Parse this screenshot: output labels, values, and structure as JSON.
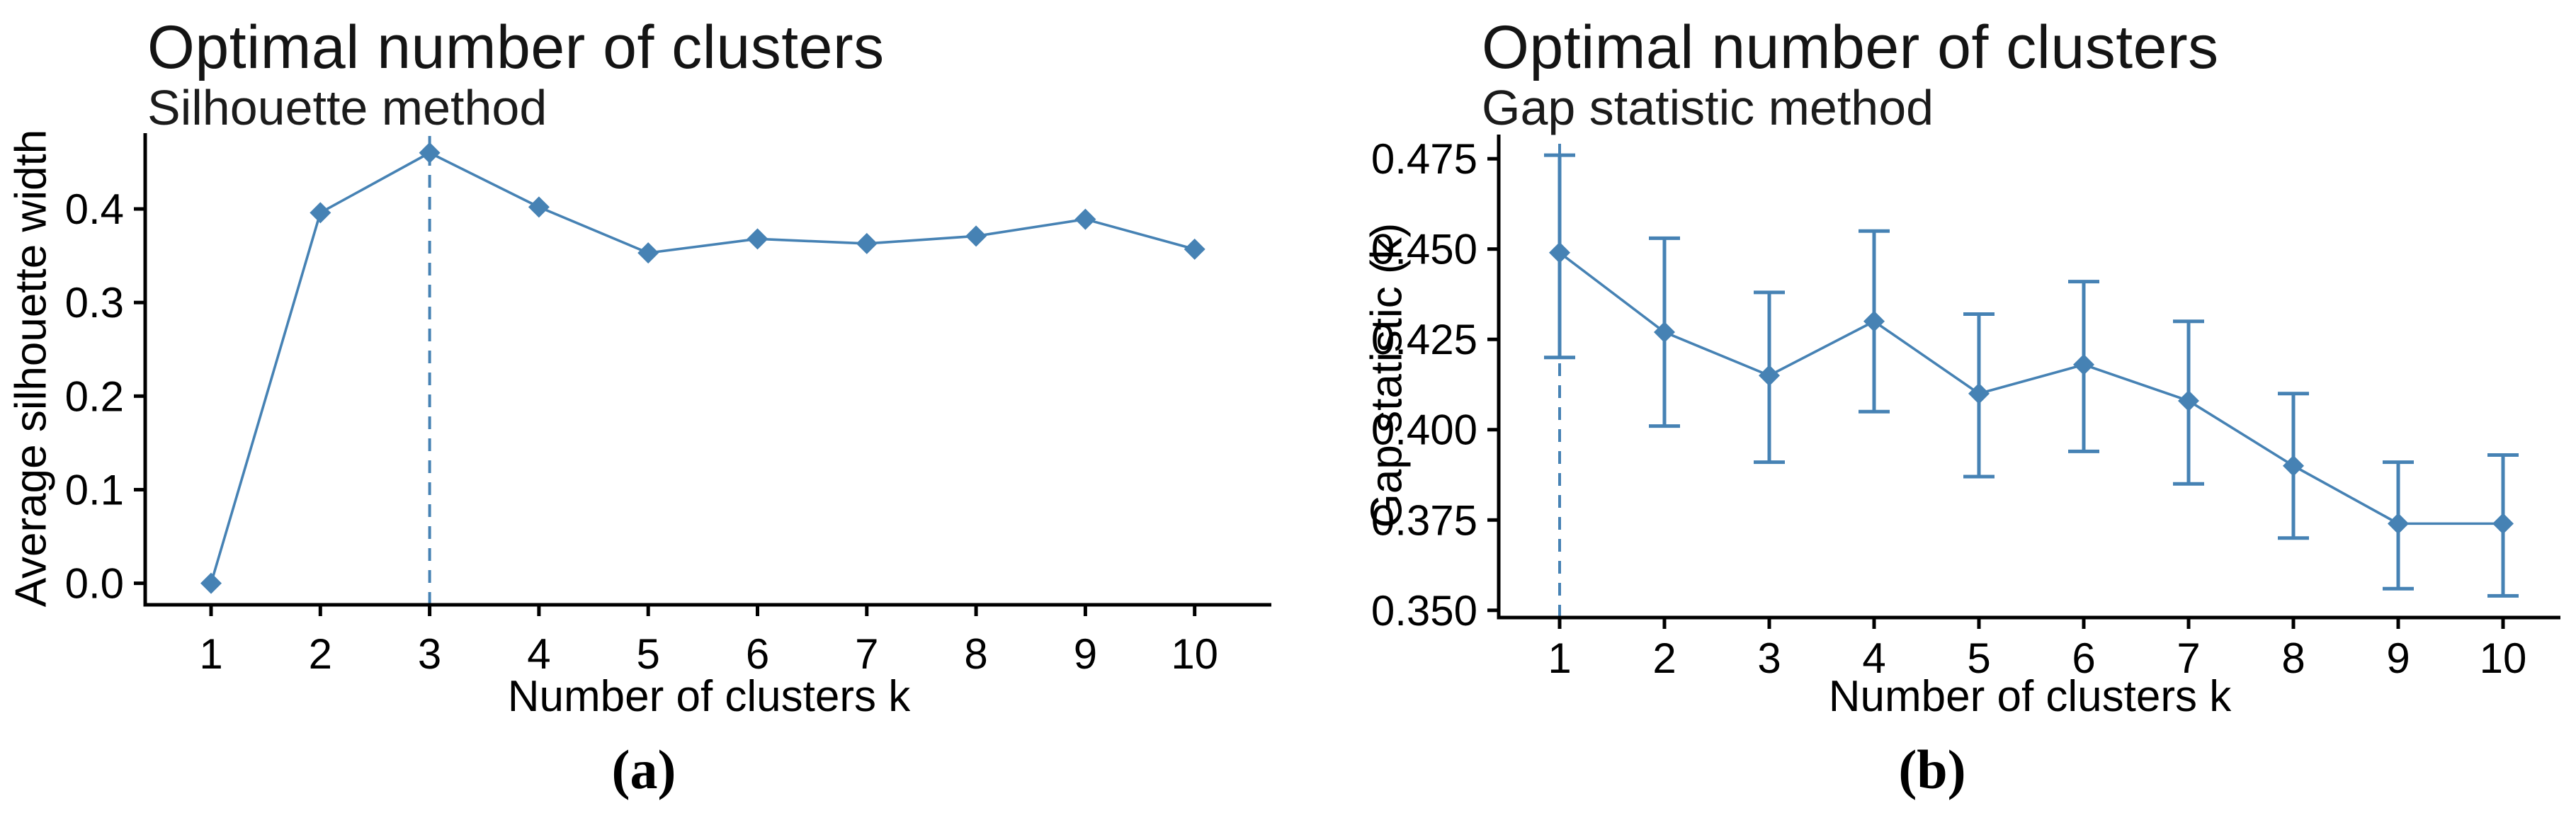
{
  "page": {
    "background": "#ffffff",
    "accent_color": "#4682B4",
    "axis_color": "#000000"
  },
  "captions": {
    "a": "(a)",
    "b": "(b)"
  },
  "chart_data": [
    {
      "id": "silhouette",
      "type": "line",
      "title": "Optimal number of clusters",
      "subtitle": "Silhouette method",
      "xlabel": "Number of clusters k",
      "ylabel": "Average silhouette width",
      "caption": "(a)",
      "color": "#4682B4",
      "marker": "diamond",
      "grid": false,
      "legend": null,
      "x": [
        1,
        2,
        3,
        4,
        5,
        6,
        7,
        8,
        9,
        10
      ],
      "xtick_labels": [
        "1",
        "2",
        "3",
        "4",
        "5",
        "6",
        "7",
        "8",
        "9",
        "10"
      ],
      "values": [
        0.0,
        0.396,
        0.46,
        0.402,
        0.353,
        0.368,
        0.363,
        0.371,
        0.389,
        0.357
      ],
      "yticks": [
        0.0,
        0.1,
        0.2,
        0.3,
        0.4
      ],
      "ytick_labels": [
        "0.0",
        "0.1",
        "0.2",
        "0.3",
        "0.4"
      ],
      "ylim": [
        -0.023,
        0.481
      ],
      "dashed_vline_at_x": 3,
      "annotation": "dashed vertical reference line at k = 3 (optimal)"
    },
    {
      "id": "gap-statistic",
      "type": "line+errorbar",
      "title": "Optimal number of clusters",
      "subtitle": "Gap statistic method",
      "xlabel": "Number of clusters k",
      "ylabel": "Gap statistic (k)",
      "caption": "(b)",
      "color": "#4682B4",
      "marker": "diamond",
      "grid": false,
      "legend": null,
      "x": [
        1,
        2,
        3,
        4,
        5,
        6,
        7,
        8,
        9,
        10
      ],
      "xtick_labels": [
        "1",
        "2",
        "3",
        "4",
        "5",
        "6",
        "7",
        "8",
        "9",
        "10"
      ],
      "values": [
        0.449,
        0.427,
        0.415,
        0.43,
        0.41,
        0.418,
        0.408,
        0.39,
        0.374,
        0.374
      ],
      "error_low": [
        0.42,
        0.401,
        0.391,
        0.405,
        0.387,
        0.394,
        0.385,
        0.37,
        0.356,
        0.354
      ],
      "error_high": [
        0.476,
        0.453,
        0.438,
        0.455,
        0.432,
        0.441,
        0.43,
        0.41,
        0.391,
        0.393
      ],
      "yticks": [
        0.35,
        0.375,
        0.4,
        0.425,
        0.45,
        0.475
      ],
      "ytick_labels": [
        "0.350",
        "0.375",
        "0.400",
        "0.425",
        "0.450",
        "0.475"
      ],
      "ylim": [
        0.348,
        0.4817
      ],
      "dashed_vline_at_x": 1,
      "annotation": "dashed vertical reference line at k = 1 (optimal)"
    }
  ]
}
